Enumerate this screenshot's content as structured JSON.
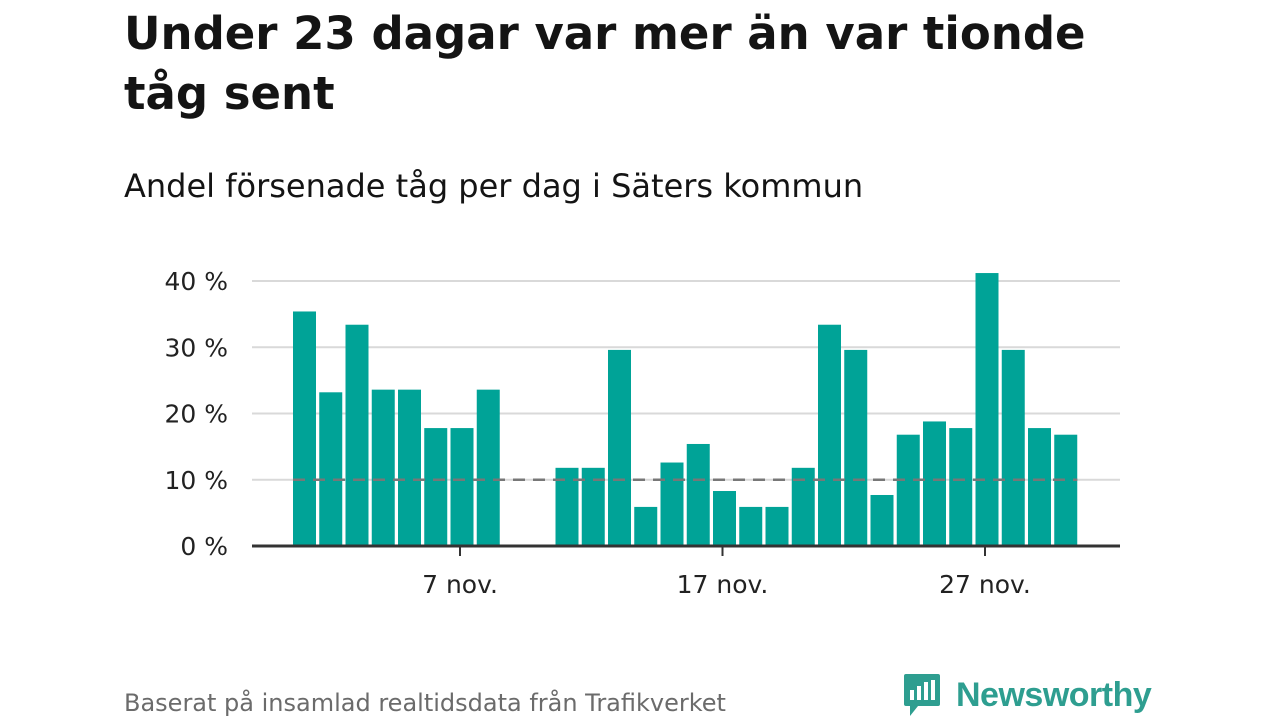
{
  "title": "Under 23 dagar var mer än var tionde tåg sent",
  "subtitle": "Andel försenade tåg per dag i Säters kommun",
  "source": "Baserat på insamlad realtidsdata från Trafikverket",
  "brand": {
    "name": "Newsworthy",
    "icon": "newsworthy-logo-icon"
  },
  "colors": {
    "bar": "#00a397",
    "reference_line": "#777777",
    "grid": "#d9d9d9",
    "axis": "#333333",
    "brand": "#2e9e90"
  },
  "chart_data": {
    "type": "bar",
    "x": [
      1,
      2,
      3,
      4,
      5,
      6,
      7,
      8,
      9,
      10,
      11,
      12,
      13,
      14,
      15,
      16,
      17,
      18,
      19,
      20,
      21,
      22,
      23,
      24,
      25,
      26,
      27,
      28,
      29,
      30
    ],
    "values": [
      35.4,
      23.2,
      33.4,
      23.6,
      23.6,
      17.8,
      17.8,
      23.6,
      null,
      null,
      11.8,
      11.8,
      29.6,
      5.9,
      12.6,
      15.4,
      8.3,
      5.9,
      5.9,
      11.8,
      33.4,
      29.6,
      7.7,
      16.8,
      18.8,
      17.8,
      41.2,
      29.6,
      17.8,
      16.8
    ],
    "unit": "%",
    "ylim": [
      0,
      42
    ],
    "yticks": [
      0,
      10,
      20,
      30,
      40
    ],
    "ytick_labels": [
      "0 %",
      "10 %",
      "20 %",
      "30 %",
      "40 %"
    ],
    "xticks": [
      7,
      17,
      27
    ],
    "xtick_labels": [
      "7 nov.",
      "17 nov.",
      "27 nov."
    ],
    "reference_line": {
      "value": 10,
      "style": "dashed"
    },
    "grid": true,
    "xlabel": "",
    "ylabel": ""
  }
}
